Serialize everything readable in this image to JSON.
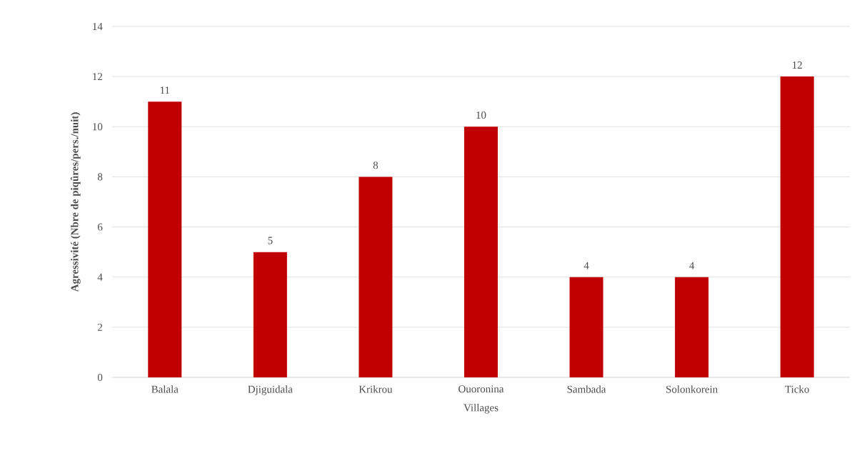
{
  "chart_data": {
    "type": "bar",
    "xlabel": "Villages",
    "ylabel": "Agressivité (Nbre de piqûres/pers./nuit)",
    "categories": [
      "Balala",
      "Djiguidala",
      "Krikrou",
      "Ouoronina",
      "Sambada",
      "Solonkorein",
      "Ticko"
    ],
    "values": [
      11,
      5,
      8,
      10,
      4,
      4,
      12
    ],
    "color": "#c00000",
    "ylim": [
      0,
      14
    ],
    "yticks": [
      0,
      2,
      4,
      6,
      8,
      10,
      12,
      14
    ],
    "grid": "y",
    "data_labels": true
  }
}
